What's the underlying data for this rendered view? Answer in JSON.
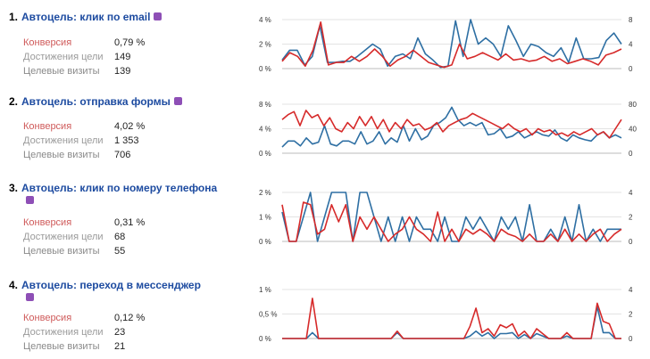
{
  "goals": [
    {
      "number": "1.",
      "title": "Автоцель: клик по email",
      "icon": "email-icon",
      "stats": [
        {
          "label": "Конверсия",
          "value": "0,79 %"
        },
        {
          "label": "Достижения цели",
          "value": "149"
        },
        {
          "label": "Целевые визиты",
          "value": "139"
        }
      ],
      "chart_data": {
        "type": "line",
        "left_axis_ticks": [
          "4 %",
          "2 %",
          "0 %"
        ],
        "right_axis_ticks": [
          "8",
          "4",
          "0"
        ],
        "left_ylim": [
          0,
          4
        ],
        "right_ylim": [
          0,
          8
        ],
        "series": [
          {
            "color": "#d62a2a",
            "axis": "left",
            "values": [
              0.6,
              1.3,
              1.0,
              0.2,
              1.5,
              3.8,
              0.3,
              0.5,
              0.5,
              1.0,
              0.6,
              1.0,
              1.6,
              1.0,
              0.2,
              0.7,
              1.0,
              1.5,
              1.0,
              0.5,
              0.3,
              0.1,
              0.3,
              2.0,
              0.8,
              1.0,
              1.3,
              1.0,
              0.7,
              1.2,
              0.7,
              0.8,
              0.6,
              0.7,
              1.0,
              0.6,
              0.8,
              0.4,
              0.6,
              0.8,
              0.6,
              0.3,
              1.1,
              1.3,
              1.6
            ]
          },
          {
            "color": "#2e6fa3",
            "axis": "left",
            "values": [
              0.7,
              1.5,
              1.5,
              0.3,
              1.0,
              3.5,
              0.5,
              0.5,
              0.6,
              0.6,
              1.0,
              1.5,
              2.0,
              1.6,
              0.2,
              1.0,
              1.2,
              0.8,
              2.5,
              1.2,
              0.7,
              0.1,
              0.2,
              3.9,
              1.0,
              4.0,
              2.0,
              2.5,
              2.0,
              1.0,
              3.5,
              2.3,
              1.0,
              2.0,
              1.8,
              1.3,
              1.0,
              1.7,
              0.5,
              2.5,
              0.8,
              0.8,
              0.9,
              2.3,
              2.9,
              2.0
            ]
          }
        ]
      }
    },
    {
      "number": "2.",
      "title": "Автоцель: отправка формы",
      "icon": "form-icon",
      "stats": [
        {
          "label": "Конверсия",
          "value": "4,02 %"
        },
        {
          "label": "Достижения цели",
          "value": "1 353"
        },
        {
          "label": "Целевые визиты",
          "value": "706"
        }
      ],
      "chart_data": {
        "type": "line",
        "left_axis_ticks": [
          "8 %",
          "4 %",
          "0 %"
        ],
        "right_axis_ticks": [
          "80",
          "40",
          "0"
        ],
        "left_ylim": [
          0,
          8
        ],
        "right_ylim": [
          0,
          80
        ],
        "series": [
          {
            "color": "#d62a2a",
            "axis": "left",
            "values": [
              5.5,
              6.3,
              6.8,
              4.5,
              7.0,
              5.8,
              6.3,
              4.5,
              5.8,
              4.0,
              3.5,
              5.0,
              4.0,
              6.0,
              4.5,
              6.0,
              4.0,
              5.5,
              3.5,
              5.0,
              4.0,
              5.5,
              4.5,
              4.8,
              3.8,
              4.2,
              5.0,
              3.5,
              4.5,
              5.0,
              5.5,
              5.8,
              6.5,
              6.0,
              5.5,
              5.0,
              4.5,
              4.0,
              4.8,
              4.0,
              3.5,
              4.0,
              3.0,
              4.0,
              3.5,
              3.8,
              3.0,
              3.3,
              2.8,
              3.5,
              3.0,
              3.5,
              4.0,
              3.0,
              3.5,
              2.5,
              4.0,
              5.5
            ]
          },
          {
            "color": "#2e6fa3",
            "axis": "left",
            "values": [
              1.0,
              2.0,
              2.0,
              1.2,
              2.5,
              1.5,
              1.8,
              4.5,
              1.5,
              1.2,
              2.0,
              2.0,
              1.5,
              3.5,
              1.5,
              2.0,
              3.5,
              1.5,
              2.5,
              1.8,
              4.5,
              2.0,
              4.0,
              2.2,
              2.8,
              4.5,
              5.0,
              5.8,
              7.5,
              5.5,
              4.5,
              5.0,
              4.5,
              5.0,
              3.0,
              3.2,
              4.0,
              2.5,
              2.8,
              3.5,
              2.5,
              3.0,
              3.5,
              3.0,
              2.8,
              3.8,
              2.5,
              2.0,
              3.0,
              2.5,
              2.2,
              2.0,
              3.0,
              3.5,
              2.5,
              3.0,
              2.5
            ]
          }
        ]
      }
    },
    {
      "number": "3.",
      "title": "Автоцель: клик по номеру телефона",
      "icon": "phone-icon",
      "stats": [
        {
          "label": "Конверсия",
          "value": "0,31 %"
        },
        {
          "label": "Достижения цели",
          "value": "68"
        },
        {
          "label": "Целевые визиты",
          "value": "55"
        }
      ],
      "chart_data": {
        "type": "line",
        "left_axis_ticks": [
          "2 %",
          "1 %",
          "0 %"
        ],
        "right_axis_ticks": [
          "4",
          "2",
          "0"
        ],
        "left_ylim": [
          0,
          2
        ],
        "right_ylim": [
          0,
          4
        ],
        "series": [
          {
            "color": "#d62a2a",
            "axis": "left",
            "values": [
              1.5,
              0.0,
              0.0,
              1.6,
              1.5,
              0.3,
              0.5,
              1.5,
              0.8,
              1.5,
              0.0,
              1.0,
              0.5,
              1.0,
              0.5,
              0.0,
              0.3,
              0.5,
              1.0,
              0.5,
              0.3,
              0.0,
              1.2,
              0.0,
              0.5,
              0.0,
              0.5,
              0.3,
              0.5,
              0.3,
              0.0,
              0.5,
              0.3,
              0.2,
              0.0,
              0.3,
              0.0,
              0.0,
              0.3,
              0.0,
              0.5,
              0.0,
              0.3,
              0.0,
              0.3,
              0.5,
              0.0,
              0.3,
              0.5
            ]
          },
          {
            "color": "#2e6fa3",
            "axis": "left",
            "values": [
              1.2,
              0.0,
              0.0,
              1.0,
              2.0,
              0.0,
              1.0,
              2.0,
              2.0,
              2.0,
              0.0,
              2.0,
              2.0,
              1.0,
              0.0,
              1.0,
              0.0,
              1.0,
              0.0,
              1.0,
              0.5,
              0.5,
              0.0,
              1.0,
              0.0,
              0.0,
              1.0,
              0.5,
              1.0,
              0.5,
              0.0,
              1.0,
              0.5,
              1.0,
              0.0,
              1.5,
              0.0,
              0.0,
              0.5,
              0.0,
              1.0,
              0.0,
              1.5,
              0.0,
              0.5,
              0.0,
              0.5,
              0.5,
              0.5
            ]
          }
        ]
      }
    },
    {
      "number": "4.",
      "title": "Автоцель: переход в мессенджер",
      "icon": "messenger-icon",
      "stats": [
        {
          "label": "Конверсия",
          "value": "0,12 %"
        },
        {
          "label": "Достижения цели",
          "value": "23"
        },
        {
          "label": "Целевые визиты",
          "value": "21"
        }
      ],
      "chart_data": {
        "type": "line",
        "left_axis_ticks": [
          "1 %",
          "0,5 %",
          "0 %"
        ],
        "right_axis_ticks": [
          "4",
          "2",
          "0"
        ],
        "left_ylim": [
          0,
          1
        ],
        "right_ylim": [
          0,
          4
        ],
        "series": [
          {
            "color": "#d62a2a",
            "axis": "left",
            "values": [
              0,
              0,
              0,
              0,
              0,
              0.82,
              0,
              0,
              0,
              0,
              0,
              0,
              0,
              0,
              0,
              0,
              0,
              0,
              0,
              0.15,
              0,
              0,
              0,
              0,
              0,
              0,
              0,
              0,
              0,
              0,
              0,
              0.25,
              0.62,
              0.12,
              0.2,
              0.05,
              0.28,
              0.22,
              0.3,
              0.05,
              0.15,
              0,
              0.2,
              0.1,
              0,
              0,
              0,
              0.12,
              0,
              0,
              0,
              0,
              0.72,
              0.35,
              0.3,
              0,
              0
            ]
          },
          {
            "color": "#2e6fa3",
            "axis": "left",
            "values": [
              0,
              0,
              0,
              0,
              0,
              0.12,
              0,
              0,
              0,
              0,
              0,
              0,
              0,
              0,
              0,
              0,
              0,
              0,
              0,
              0.12,
              0,
              0,
              0,
              0,
              0,
              0,
              0,
              0,
              0,
              0,
              0,
              0.05,
              0.15,
              0.05,
              0.12,
              0,
              0.1,
              0.1,
              0.12,
              0,
              0.08,
              0,
              0.1,
              0.05,
              0,
              0,
              0,
              0.05,
              0,
              0,
              0,
              0,
              0.65,
              0.12,
              0.12,
              0,
              0
            ]
          }
        ]
      }
    }
  ]
}
